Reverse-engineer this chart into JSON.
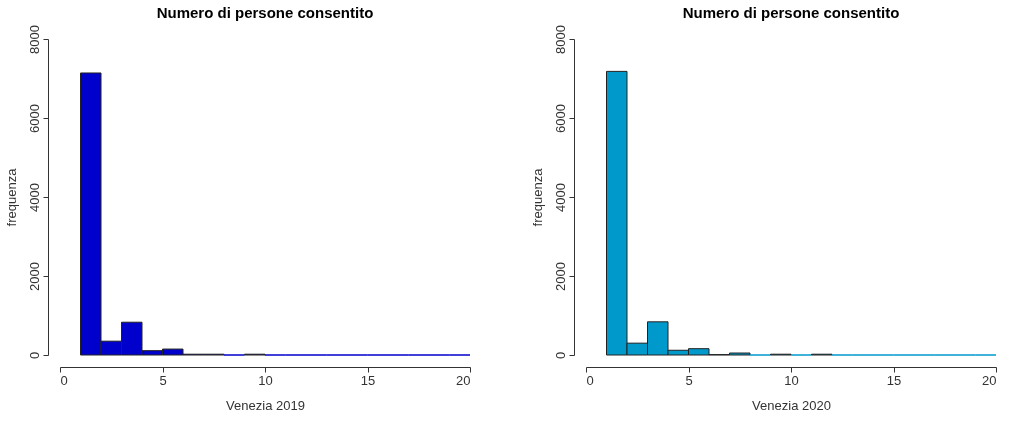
{
  "chart_data": [
    {
      "type": "histogram",
      "title": "Numero di persone consentito",
      "xlabel": "Venezia 2019",
      "ylabel": "frequenza",
      "bins": [
        1,
        2,
        3,
        4,
        5,
        6,
        7,
        8,
        9,
        10,
        11,
        12,
        13,
        14,
        15,
        16,
        17,
        18,
        19,
        20
      ],
      "values": [
        7140,
        350,
        830,
        110,
        150,
        20,
        20,
        0,
        20,
        0,
        0,
        0,
        0,
        0,
        0,
        0,
        0,
        0,
        0
      ],
      "color": "#0000cd",
      "xlim": [
        0,
        20
      ],
      "xticks": [
        0,
        5,
        10,
        15,
        20
      ],
      "ylim": [
        0,
        8000
      ],
      "yticks": [
        0,
        2000,
        4000,
        6000,
        8000
      ],
      "grid": false,
      "legend": false
    },
    {
      "type": "histogram",
      "title": "Numero di persone consentito",
      "xlabel": "Venezia 2020",
      "ylabel": "frequenza",
      "bins": [
        1,
        2,
        3,
        4,
        5,
        6,
        7,
        8,
        9,
        10,
        11,
        12,
        13,
        14,
        15,
        16,
        17,
        18,
        19,
        20
      ],
      "values": [
        7180,
        300,
        840,
        120,
        160,
        10,
        50,
        0,
        20,
        0,
        20,
        0,
        0,
        0,
        0,
        0,
        0,
        0,
        0
      ],
      "color": "#0099cc",
      "xlim": [
        0,
        20
      ],
      "xticks": [
        0,
        5,
        10,
        15,
        20
      ],
      "ylim": [
        0,
        8000
      ],
      "yticks": [
        0,
        2000,
        4000,
        6000,
        8000
      ],
      "grid": false,
      "legend": false
    }
  ]
}
